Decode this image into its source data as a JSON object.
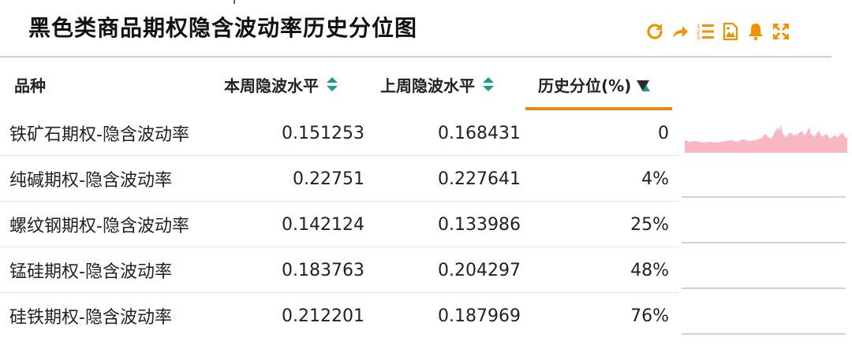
{
  "header": {
    "title": "黑色类商品期权隐含波动率历史分位图",
    "toolbar": [
      {
        "icon": "refresh-icon"
      },
      {
        "icon": "share-icon"
      },
      {
        "icon": "ordered-list-icon"
      },
      {
        "icon": "image-icon"
      },
      {
        "icon": "bell-icon"
      },
      {
        "icon": "fullscreen-icon"
      }
    ],
    "accent_color": "#f39200"
  },
  "table": {
    "columns": {
      "name": "品种",
      "current": "本周隐波水平",
      "previous": "上周隐波水平",
      "percentile": "历史分位(%)"
    },
    "sort_active_color": "#e38a18",
    "rows": [
      {
        "name": "铁矿石期权-隐含波动率",
        "current": "0.151253",
        "previous": "0.168431",
        "percentile": "0"
      },
      {
        "name": "纯碱期权-隐含波动率",
        "current": "0.22751",
        "previous": "0.227641",
        "percentile": "4%"
      },
      {
        "name": "螺纹钢期权-隐含波动率",
        "current": "0.142124",
        "previous": "0.133986",
        "percentile": "25%"
      },
      {
        "name": "锰硅期权-隐含波动率",
        "current": "0.183763",
        "previous": "0.204297",
        "percentile": "48%"
      },
      {
        "name": "硅铁期权-隐含波动率",
        "current": "0.212201",
        "previous": "0.187969",
        "percentile": "76%"
      }
    ],
    "sparkline_colors": {
      "area": "#f9b7c2",
      "line": "#c9d6ea"
    }
  }
}
